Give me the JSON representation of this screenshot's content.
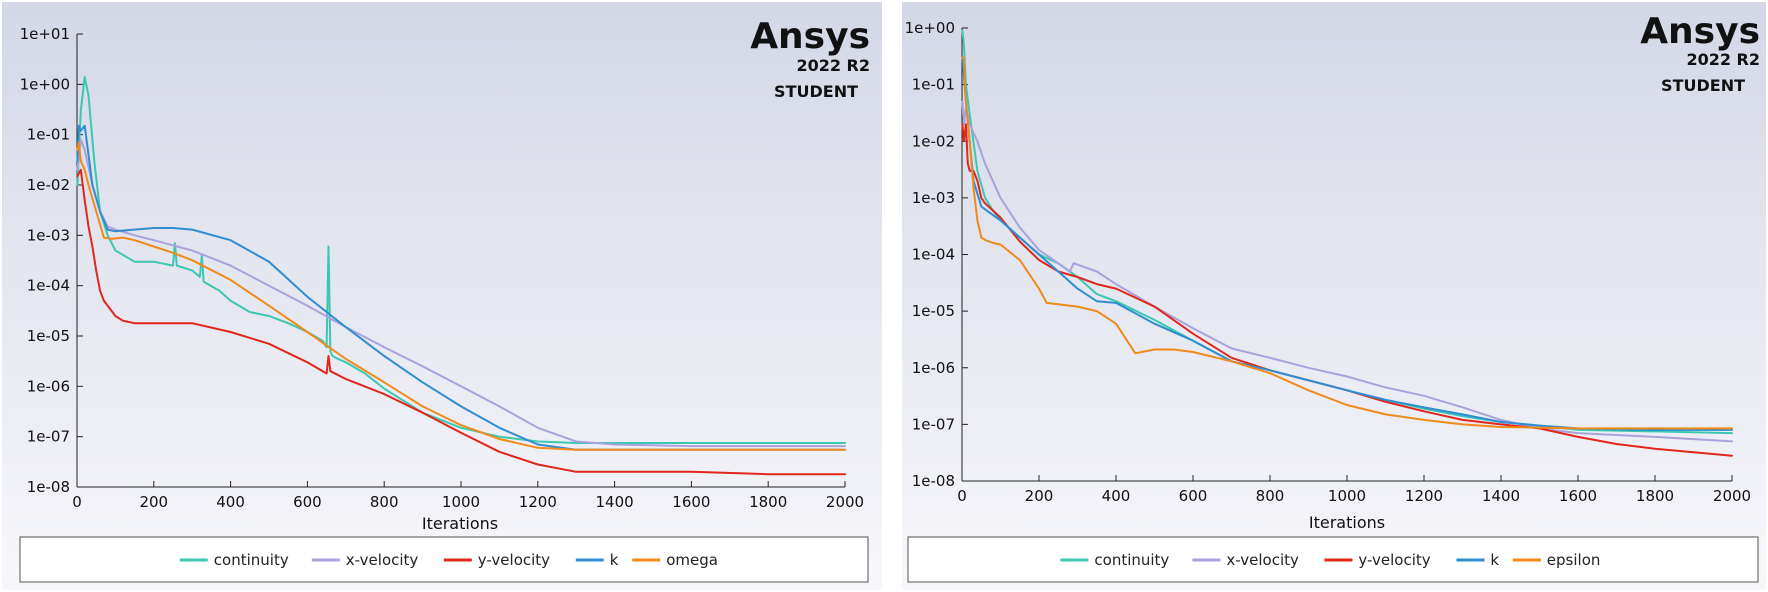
{
  "panels": [
    {
      "logo": {
        "brand": "Ansys",
        "version": "2022 R2",
        "edition": "STUDENT"
      },
      "chart_data": {
        "type": "line",
        "xlabel": "Iterations",
        "ylabel": "",
        "xlim": [
          0,
          2000
        ],
        "ylim": [
          1e-08,
          10
        ],
        "yscale": "log",
        "x_ticks": [
          0,
          200,
          400,
          600,
          800,
          1000,
          1200,
          1400,
          1600,
          1800,
          2000
        ],
        "x_tick_labels": [
          "0",
          "200",
          "400",
          "600",
          "800",
          "1000",
          "1200",
          "1400",
          "1600",
          "1800",
          "2000"
        ],
        "y_ticks": [
          1e-08,
          1e-07,
          1e-06,
          1e-05,
          0.0001,
          0.001,
          0.01,
          0.1,
          1,
          10
        ],
        "y_tick_labels": [
          "1e-08",
          "1e-07",
          "1e-06",
          "1e-05",
          "1e-04",
          "1e-03",
          "1e-02",
          "1e-01",
          "1e+00",
          "1e+01"
        ],
        "legend": "bottom",
        "grid": false,
        "series": [
          {
            "name": "continuity",
            "color": "#3cc7b0",
            "x": [
              1,
              10,
              20,
              30,
              45,
              60,
              80,
              100,
              150,
              200,
              250,
              255,
              260,
              300,
              320,
              325,
              330,
              370,
              400,
              450,
              500,
              550,
              600,
              640,
              650,
              655,
              660,
              665,
              680,
              700,
              750,
              800,
              900,
              1000,
              1100,
              1200,
              1300,
              1400,
              1600,
              1800,
              2000
            ],
            "y": [
              0.01,
              0.3,
              1.4,
              0.6,
              0.03,
              0.003,
              0.001,
              0.0005,
              0.0003,
              0.0003,
              0.00025,
              0.0007,
              0.00025,
              0.0002,
              0.00015,
              0.0004,
              0.00012,
              8e-05,
              5e-05,
              3e-05,
              2.5e-05,
              1.8e-05,
              1.2e-05,
              8e-06,
              6e-06,
              0.0006,
              5e-06,
              4e-06,
              3.5e-06,
              3e-06,
              1.8e-06,
              9e-07,
              3e-07,
              1.5e-07,
              1e-07,
              8e-08,
              7.5e-08,
              7.5e-08,
              7.5e-08,
              7.5e-08,
              7.5e-08
            ]
          },
          {
            "name": "x-velocity",
            "color": "#a9a2dc",
            "x": [
              1,
              10,
              20,
              40,
              60,
              80,
              100,
              150,
              200,
              300,
              400,
              500,
              600,
              700,
              800,
              900,
              1000,
              1100,
              1200,
              1300,
              1400,
              1600,
              1800,
              2000
            ],
            "y": [
              0.02,
              0.08,
              0.05,
              0.01,
              0.003,
              0.0015,
              0.0013,
              0.001,
              0.0008,
              0.0005,
              0.00025,
              0.0001,
              4e-05,
              1.5e-05,
              6e-06,
              2.5e-06,
              1e-06,
              4e-07,
              1.5e-07,
              8e-08,
              7e-08,
              6.5e-08,
              6.5e-08,
              6.5e-08
            ]
          },
          {
            "name": "y-velocity",
            "color": "#e1261c",
            "x": [
              1,
              10,
              20,
              30,
              40,
              50,
              60,
              70,
              80,
              100,
              120,
              150,
              200,
              250,
              300,
              400,
              500,
              600,
              650,
              655,
              660,
              700,
              800,
              900,
              1000,
              1100,
              1200,
              1300,
              1400,
              1600,
              1800,
              2000
            ],
            "y": [
              0.015,
              0.02,
              0.005,
              0.0015,
              0.0006,
              0.0002,
              8e-05,
              5e-05,
              4e-05,
              2.5e-05,
              2e-05,
              1.8e-05,
              1.8e-05,
              1.8e-05,
              1.8e-05,
              1.2e-05,
              7e-06,
              3e-06,
              1.8e-06,
              4e-06,
              2e-06,
              1.4e-06,
              7e-07,
              3e-07,
              1.2e-07,
              5e-08,
              2.8e-08,
              2e-08,
              2e-08,
              2e-08,
              1.8e-08,
              1.8e-08
            ]
          },
          {
            "name": "k",
            "color": "#2f8ed2",
            "x": [
              1,
              5,
              10,
              20,
              30,
              40,
              60,
              80,
              100,
              150,
              200,
              250,
              300,
              400,
              500,
              600,
              700,
              800,
              900,
              1000,
              1100,
              1200,
              1300,
              1400,
              1600,
              1800,
              2000
            ],
            "y": [
              0.03,
              0.15,
              0.12,
              0.15,
              0.04,
              0.01,
              0.003,
              0.0013,
              0.0012,
              0.0013,
              0.0014,
              0.0014,
              0.0013,
              0.0008,
              0.0003,
              6e-05,
              1.5e-05,
              4e-06,
              1.2e-06,
              4e-07,
              1.5e-07,
              7e-08,
              5.5e-08,
              5.5e-08,
              5.5e-08,
              5.5e-08,
              5.5e-08
            ]
          },
          {
            "name": "omega",
            "color": "#f08a1b",
            "x": [
              1,
              5,
              10,
              20,
              30,
              50,
              70,
              90,
              120,
              150,
              200,
              250,
              300,
              400,
              500,
              600,
              700,
              800,
              900,
              1000,
              1100,
              1200,
              1300,
              1400,
              1600,
              1800,
              2000
            ],
            "y": [
              0.05,
              0.07,
              0.03,
              0.02,
              0.01,
              0.003,
              0.0009,
              0.00085,
              0.0009,
              0.0008,
              0.0006,
              0.00045,
              0.00032,
              0.00013,
              4e-05,
              1.2e-05,
              3.5e-06,
              1.2e-06,
              4e-07,
              1.7e-07,
              9e-08,
              6e-08,
              5.5e-08,
              5.5e-08,
              5.5e-08,
              5.5e-08,
              5.5e-08
            ]
          }
        ]
      }
    },
    {
      "logo": {
        "brand": "Ansys",
        "version": "2022 R2",
        "edition": "STUDENT"
      },
      "chart_data": {
        "type": "line",
        "xlabel": "Iterations",
        "ylabel": "",
        "xlim": [
          0,
          2000
        ],
        "ylim": [
          1e-08,
          1
        ],
        "yscale": "log",
        "x_ticks": [
          0,
          200,
          400,
          600,
          800,
          1000,
          1200,
          1400,
          1600,
          1800,
          2000
        ],
        "x_tick_labels": [
          "0",
          "200",
          "400",
          "600",
          "800",
          "1000",
          "1200",
          "1400",
          "1600",
          "1800",
          "2000"
        ],
        "y_ticks": [
          1e-08,
          1e-07,
          1e-06,
          1e-05,
          0.0001,
          0.001,
          0.01,
          0.1,
          1
        ],
        "y_tick_labels": [
          "1e-08",
          "1e-07",
          "1e-06",
          "1e-05",
          "1e-04",
          "1e-03",
          "1e-02",
          "1e-01",
          "1e+00"
        ],
        "legend": "bottom",
        "grid": false,
        "series": [
          {
            "name": "continuity",
            "color": "#3cc7b0",
            "x": [
              1,
              5,
              10,
              20,
              40,
              60,
              80,
              100,
              150,
              200,
              250,
              300,
              350,
              400,
              500,
              600,
              700,
              800,
              900,
              1000,
              1100,
              1200,
              1300,
              1400,
              1500,
              1600,
              1800,
              2000
            ],
            "y": [
              0.9,
              0.5,
              0.1,
              0.03,
              0.003,
              0.001,
              0.0006,
              0.0004,
              0.0002,
              0.0001,
              7e-05,
              4e-05,
              2e-05,
              1.5e-05,
              7e-06,
              3e-06,
              1.3e-06,
              9e-07,
              6e-07,
              4e-07,
              2.7e-07,
              1.9e-07,
              1.4e-07,
              1.1e-07,
              9.5e-08,
              8e-08,
              7.5e-08,
              7e-08
            ]
          },
          {
            "name": "x-velocity",
            "color": "#a9a2dc",
            "x": [
              1,
              5,
              10,
              20,
              40,
              60,
              80,
              100,
              150,
              200,
              250,
              280,
              290,
              350,
              400,
              500,
              600,
              700,
              800,
              900,
              1000,
              1100,
              1200,
              1300,
              1400,
              1500,
              1600,
              1800,
              2000
            ],
            "y": [
              0.05,
              0.02,
              0.04,
              0.02,
              0.01,
              0.004,
              0.002,
              0.001,
              0.0003,
              0.00012,
              7e-05,
              5e-05,
              7e-05,
              5e-05,
              3e-05,
              1.2e-05,
              5e-06,
              2.2e-06,
              1.5e-06,
              1e-06,
              7e-07,
              4.5e-07,
              3.2e-07,
              2e-07,
              1.2e-07,
              8.5e-08,
              7e-08,
              6e-08,
              5e-08
            ]
          },
          {
            "name": "y-velocity",
            "color": "#e1261c",
            "x": [
              1,
              5,
              10,
              15,
              20,
              30,
              40,
              50,
              60,
              80,
              100,
              150,
              200,
              250,
              300,
              350,
              400,
              500,
              600,
              700,
              800,
              900,
              1000,
              1100,
              1200,
              1300,
              1400,
              1500,
              1600,
              1700,
              1800,
              2000
            ],
            "y": [
              0.02,
              0.01,
              0.02,
              0.004,
              0.003,
              0.003,
              0.002,
              0.001,
              0.0008,
              0.0006,
              0.00045,
              0.00017,
              8e-05,
              5e-05,
              4e-05,
              3e-05,
              2.5e-05,
              1.2e-05,
              4e-06,
              1.5e-06,
              9e-07,
              6e-07,
              4e-07,
              2.5e-07,
              1.7e-07,
              1.2e-07,
              1e-07,
              8.5e-08,
              6e-08,
              4.5e-08,
              3.7e-08,
              2.8e-08
            ]
          },
          {
            "name": "k",
            "color": "#2f8ed2",
            "x": [
              1,
              5,
              10,
              20,
              30,
              50,
              80,
              100,
              150,
              200,
              250,
              300,
              350,
              400,
              500,
              600,
              700,
              800,
              900,
              1000,
              1100,
              1200,
              1300,
              1400,
              1500,
              1600,
              1800,
              2000
            ],
            "y": [
              0.3,
              0.15,
              0.05,
              0.01,
              0.002,
              0.0007,
              0.0005,
              0.0004,
              0.0002,
              0.0001,
              5e-05,
              2.5e-05,
              1.5e-05,
              1.4e-05,
              6e-06,
              3e-06,
              1.3e-06,
              9e-07,
              6e-07,
              4e-07,
              2.7e-07,
              2e-07,
              1.5e-07,
              1.1e-07,
              9.5e-08,
              8.5e-08,
              8e-08,
              8e-08
            ]
          },
          {
            "name": "epsilon",
            "color": "#f08a1b",
            "x": [
              1,
              5,
              10,
              20,
              30,
              40,
              50,
              60,
              80,
              100,
              150,
              200,
              220,
              300,
              350,
              400,
              450,
              500,
              550,
              600,
              700,
              800,
              900,
              1000,
              1100,
              1200,
              1300,
              1400,
              1600,
              1800,
              2000
            ],
            "y": [
              0.3,
              0.3,
              0.05,
              0.01,
              0.0015,
              0.0004,
              0.0002,
              0.00018,
              0.00016,
              0.00015,
              8e-05,
              2.5e-05,
              1.4e-05,
              1.2e-05,
              1e-05,
              6e-06,
              1.8e-06,
              2.1e-06,
              2.1e-06,
              1.9e-06,
              1.3e-06,
              8e-07,
              4e-07,
              2.2e-07,
              1.5e-07,
              1.2e-07,
              1e-07,
              9e-08,
              8.5e-08,
              8.5e-08,
              8.5e-08
            ]
          }
        ]
      }
    }
  ]
}
